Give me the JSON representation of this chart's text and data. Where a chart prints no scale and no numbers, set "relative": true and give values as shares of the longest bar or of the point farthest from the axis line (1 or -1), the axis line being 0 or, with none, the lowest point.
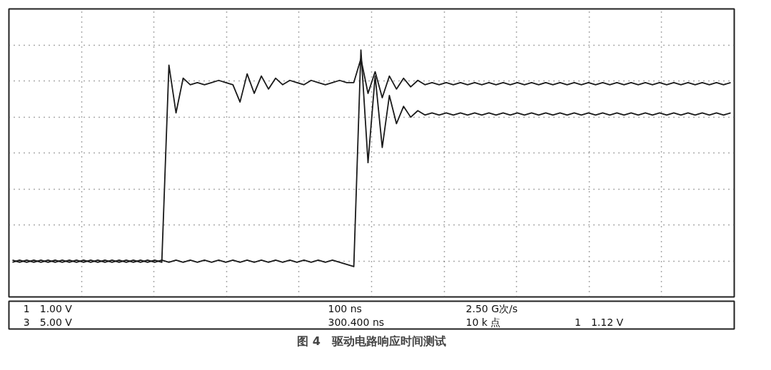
{
  "chart_data": {
    "type": "line",
    "title": "图 4　驱动电路响应时间测试",
    "relative": true,
    "grid": true,
    "annotations": [
      "1　1.00 V",
      "3　5.00 V",
      "100 ns",
      "300.400 ns",
      "2.50 G次/s",
      "10 k 点",
      "1　1.12 V"
    ],
    "categories": [
      null,
      null,
      null,
      null,
      null,
      null,
      null,
      null,
      null,
      null,
      null,
      null,
      null,
      null,
      null,
      null,
      null,
      null,
      null,
      null,
      null,
      null,
      null,
      null,
      null,
      null,
      null,
      null,
      null,
      null,
      null,
      null,
      null,
      null,
      null,
      null,
      null,
      null,
      null,
      null,
      null,
      null,
      null,
      null,
      null,
      null,
      null,
      null,
      null,
      null,
      null,
      null,
      null,
      null,
      null,
      null,
      null,
      null,
      null,
      null,
      null,
      null,
      null,
      null,
      null,
      null,
      null,
      null,
      null,
      null,
      null,
      null,
      null,
      null,
      null,
      null,
      null,
      null,
      null,
      null,
      null,
      null,
      null,
      null,
      null,
      null,
      null,
      null,
      null,
      null,
      null,
      null,
      null,
      null,
      null,
      null,
      null,
      null,
      null,
      null,
      null,
      null
    ],
    "series": [
      {
        "color": "#1a1a1a",
        "values": [
          0.03,
          0.02,
          0.03,
          0.02,
          0.03,
          0.02,
          0.03,
          0.02,
          0.03,
          0.02,
          0.03,
          0.02,
          0.03,
          0.02,
          0.03,
          0.02,
          0.03,
          0.02,
          0.03,
          0.02,
          0.03,
          0.02,
          0.93,
          0.71,
          0.87,
          0.84,
          0.85,
          0.84,
          0.85,
          0.86,
          0.85,
          0.84,
          0.76,
          0.89,
          0.8,
          0.88,
          0.82,
          0.87,
          0.84,
          0.86,
          0.85,
          0.84,
          0.86,
          0.85,
          0.84,
          0.85,
          0.86,
          0.85,
          0.85,
          0.96,
          0.8,
          0.9,
          0.78,
          0.88,
          0.82,
          0.87,
          0.83,
          0.86,
          0.84,
          0.85,
          0.84,
          0.85,
          0.84,
          0.85,
          0.84,
          0.85,
          0.84,
          0.85,
          0.84,
          0.85,
          0.84,
          0.85,
          0.84,
          0.85,
          0.84,
          0.85,
          0.84,
          0.85,
          0.84,
          0.85,
          0.84,
          0.85,
          0.84,
          0.85,
          0.84,
          0.85,
          0.84,
          0.85,
          0.84,
          0.85,
          0.84,
          0.85,
          0.84,
          0.85,
          0.84,
          0.85,
          0.84,
          0.85,
          0.84,
          0.85,
          0.84,
          0.85
        ]
      },
      {
        "color": "#1a1a1a",
        "values": [
          0.02,
          0.03,
          0.02,
          0.03,
          0.02,
          0.03,
          0.02,
          0.03,
          0.02,
          0.03,
          0.02,
          0.03,
          0.02,
          0.03,
          0.02,
          0.03,
          0.02,
          0.03,
          0.02,
          0.03,
          0.02,
          0.03,
          0.02,
          0.03,
          0.02,
          0.03,
          0.02,
          0.03,
          0.02,
          0.03,
          0.02,
          0.03,
          0.02,
          0.03,
          0.02,
          0.03,
          0.02,
          0.03,
          0.02,
          0.03,
          0.02,
          0.03,
          0.02,
          0.03,
          0.02,
          0.03,
          0.02,
          0.01,
          0.0,
          1.0,
          0.48,
          0.88,
          0.55,
          0.79,
          0.66,
          0.74,
          0.69,
          0.72,
          0.7,
          0.71,
          0.7,
          0.71,
          0.7,
          0.71,
          0.7,
          0.71,
          0.7,
          0.71,
          0.7,
          0.71,
          0.7,
          0.71,
          0.7,
          0.71,
          0.7,
          0.71,
          0.7,
          0.71,
          0.7,
          0.71,
          0.7,
          0.71,
          0.7,
          0.71,
          0.7,
          0.71,
          0.7,
          0.71,
          0.7,
          0.71,
          0.7,
          0.71,
          0.7,
          0.71,
          0.7,
          0.71,
          0.7,
          0.71,
          0.7,
          0.71,
          0.7,
          0.71
        ]
      }
    ]
  }
}
